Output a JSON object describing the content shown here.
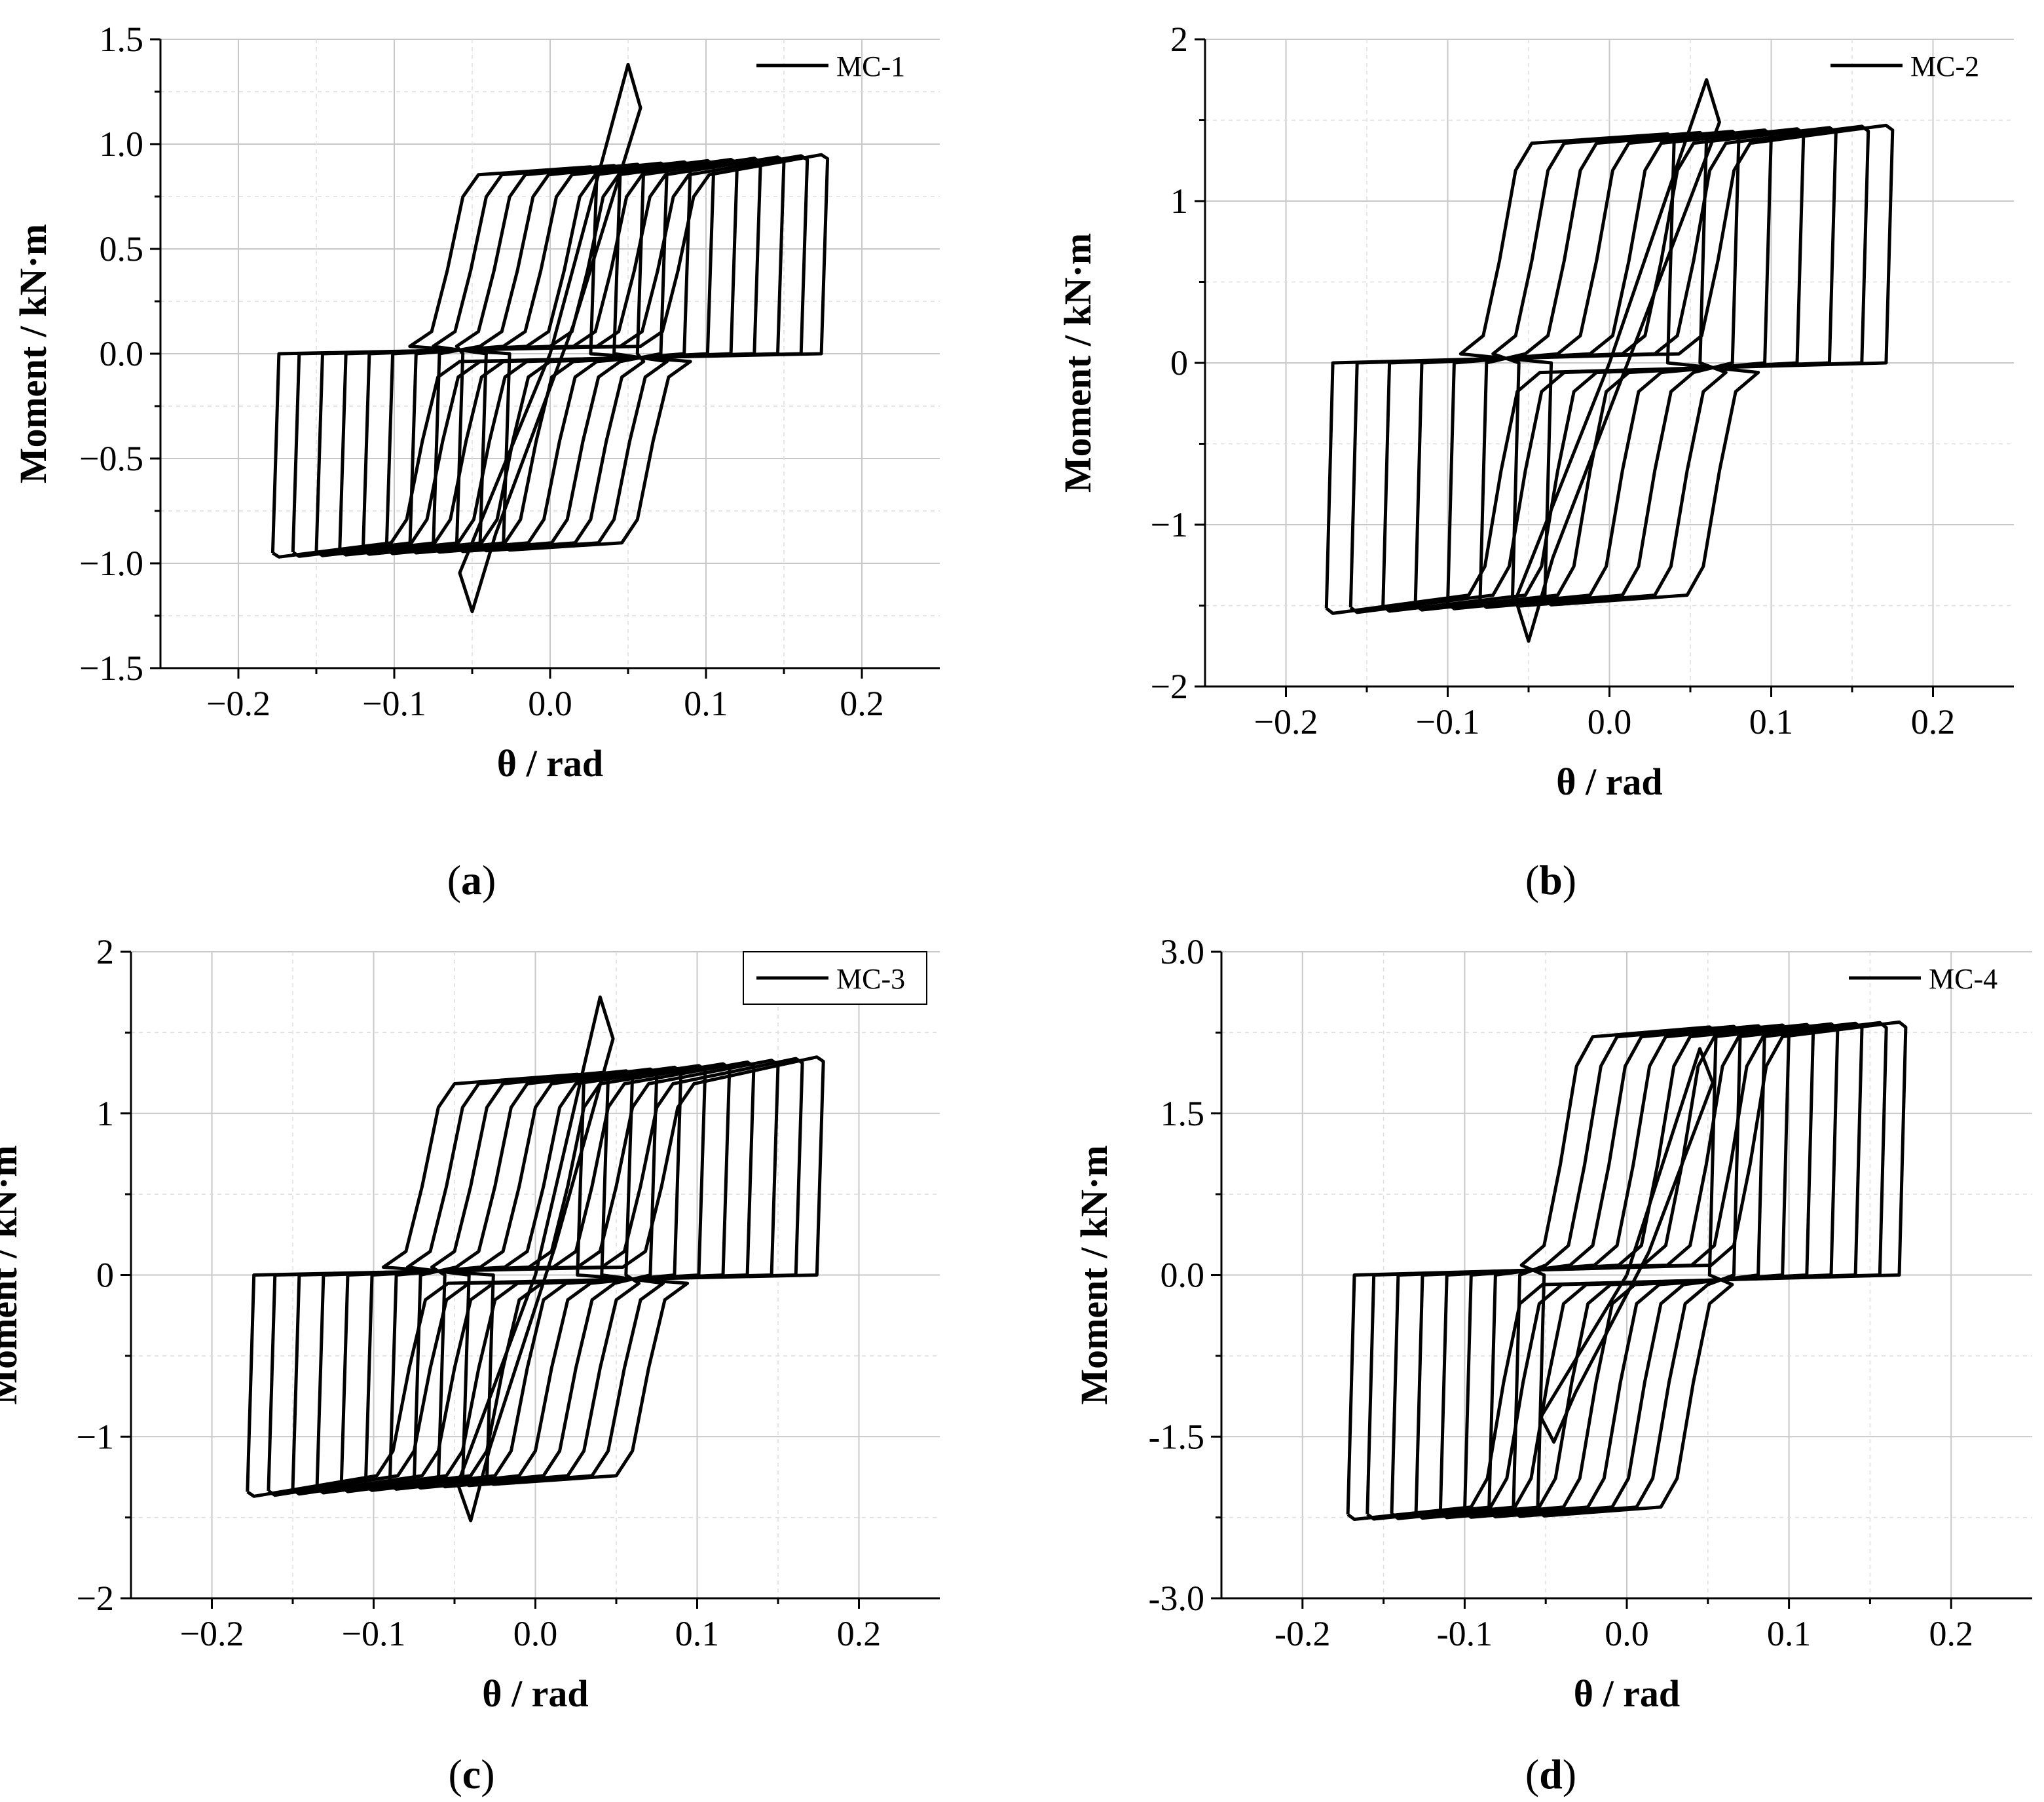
{
  "figure": {
    "panels": [
      {
        "letter": "a"
      },
      {
        "letter": "b"
      },
      {
        "letter": "c"
      },
      {
        "letter": "d"
      }
    ]
  },
  "chart_data": [
    {
      "type": "line",
      "panel_label": "(a)",
      "xlabel": "θ / rad",
      "ylabel": "Moment / kN·m",
      "xlim": [
        -0.25,
        0.25
      ],
      "ylim": [
        -1.5,
        1.5
      ],
      "xticks": [
        -0.2,
        -0.1,
        0.0,
        0.1,
        0.2
      ],
      "xtick_labels": [
        "−0.2",
        "−0.1",
        "0.0",
        "0.1",
        "0.2"
      ],
      "yticks": [
        -1.5,
        -1.0,
        -0.5,
        0.0,
        0.5,
        1.0,
        1.5
      ],
      "ytick_labels": [
        "−1.5",
        "−1.0",
        "−0.5",
        "0.0",
        "0.5",
        "1.0",
        "1.5"
      ],
      "grid": true,
      "legend_position": "top-right",
      "series": [
        {
          "name": "MC-1",
          "color": "#000000"
        }
      ],
      "loops": {
        "amplitudes": [
          0.03,
          0.045,
          0.06,
          0.075,
          0.09,
          0.105,
          0.12,
          0.135,
          0.15,
          0.165,
          0.178
        ],
        "pos_plateau": 0.88,
        "neg_plateau": -0.93,
        "pos_end": 0.95,
        "neg_end": -0.97,
        "pinch_width": 0.1,
        "pinch_shift": 0.008
      },
      "initial_peak": {
        "pos": [
          0.05,
          1.38
        ],
        "neg": [
          -0.05,
          -1.23
        ]
      }
    },
    {
      "type": "line",
      "panel_label": "(b)",
      "xlabel": "θ / rad",
      "ylabel": "Moment / kN·m",
      "xlim": [
        -0.25,
        0.25
      ],
      "ylim": [
        -2,
        2
      ],
      "xticks": [
        -0.2,
        -0.1,
        0.0,
        0.1,
        0.2
      ],
      "xtick_labels": [
        "−0.2",
        "−0.1",
        "0.0",
        "0.1",
        "0.2"
      ],
      "yticks": [
        -2,
        -1,
        0,
        1,
        2
      ],
      "ytick_labels": [
        "−2",
        "−1",
        "0",
        "1",
        "2"
      ],
      "grid": true,
      "legend_position": "top-right",
      "series": [
        {
          "name": "MC-2",
          "color": "#000000"
        }
      ],
      "loops": {
        "amplitudes": [
          0.04,
          0.06,
          0.08,
          0.1,
          0.12,
          0.14,
          0.16,
          0.175
        ],
        "pos_plateau": 1.4,
        "neg_plateau": -1.48,
        "pos_end": 1.47,
        "neg_end": -1.55,
        "pinch_width": 0.11,
        "pinch_shift": 0.006
      },
      "initial_peak": {
        "pos": [
          0.06,
          1.75
        ],
        "neg": [
          -0.05,
          -1.72
        ]
      }
    },
    {
      "type": "line",
      "panel_label": "(c)",
      "xlabel": "θ / rad",
      "ylabel": "Moment / kN·m",
      "xlim": [
        -0.25,
        0.25
      ],
      "ylim": [
        -2,
        2
      ],
      "xticks": [
        -0.2,
        -0.1,
        0.0,
        0.1,
        0.2
      ],
      "xtick_labels": [
        "−0.2",
        "−0.1",
        "0.0",
        "0.1",
        "0.2"
      ],
      "yticks": [
        -2,
        -1,
        0,
        1,
        2
      ],
      "ytick_labels": [
        "−2",
        "−1",
        "0",
        "1",
        "2"
      ],
      "grid": true,
      "legend_position": "top-right",
      "series": [
        {
          "name": "MC-3",
          "color": "#000000"
        }
      ],
      "loops": {
        "amplitudes": [
          0.03,
          0.045,
          0.06,
          0.075,
          0.09,
          0.105,
          0.12,
          0.135,
          0.15,
          0.165,
          0.178
        ],
        "pos_plateau": 1.22,
        "neg_plateau": -1.28,
        "pos_end": 1.35,
        "neg_end": -1.37,
        "pinch_width": 0.1,
        "pinch_shift": 0.004
      },
      "initial_peak": {
        "pos": [
          0.04,
          1.72
        ],
        "neg": [
          -0.04,
          -1.52
        ]
      }
    },
    {
      "type": "line",
      "panel_label": "(d)",
      "xlabel": "θ / rad",
      "ylabel": "Moment / kN·m",
      "xlim": [
        -0.25,
        0.25
      ],
      "ylim": [
        -3.0,
        3.0
      ],
      "xticks": [
        -0.2,
        -0.1,
        0.0,
        0.1,
        0.2
      ],
      "xtick_labels": [
        "-0.2",
        "-0.1",
        "0.0",
        "0.1",
        "0.2"
      ],
      "yticks": [
        -3.0,
        -1.5,
        0.0,
        1.5,
        3.0
      ],
      "ytick_labels": [
        "-3.0",
        "-1.5",
        "0.0",
        "1.5",
        "3.0"
      ],
      "grid": true,
      "legend_position": "top-right",
      "series": [
        {
          "name": "MC-4",
          "color": "#000000"
        }
      ],
      "loops": {
        "amplitudes": [
          0.055,
          0.07,
          0.085,
          0.1,
          0.115,
          0.13,
          0.145,
          0.16,
          0.172
        ],
        "pos_plateau": 2.28,
        "neg_plateau": -2.22,
        "pos_end": 2.35,
        "neg_end": -2.27,
        "pinch_width": 0.1,
        "pinch_shift": 0.008
      },
      "initial_peak": {
        "pos": [
          0.045,
          2.1
        ],
        "neg": [
          -0.045,
          -1.55
        ]
      }
    }
  ]
}
